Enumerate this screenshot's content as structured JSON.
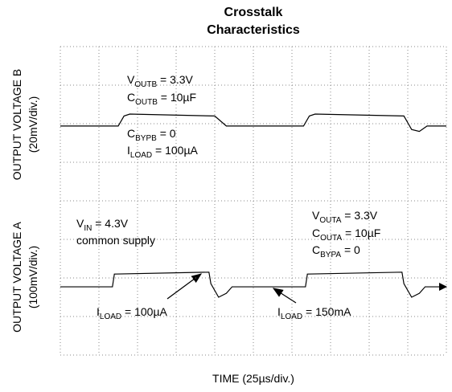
{
  "chart_data": {
    "type": "line",
    "title_lines": [
      "Crosstalk",
      "Characteristics"
    ],
    "y_label_top": [
      "OUTPUT VOLTAGE B",
      "(20mV/div.)"
    ],
    "y_label_bottom": [
      "OUTPUT VOLTAGE A",
      "(100mV/div.)"
    ],
    "x_label": "TIME (25µs/div.)",
    "xlim": [
      0,
      10
    ],
    "ylim": [
      0,
      8
    ],
    "xticks": [
      0,
      1,
      2,
      3,
      4,
      5,
      6,
      7,
      8,
      9,
      10
    ],
    "yticks": [
      0,
      1,
      2,
      3,
      4,
      5,
      6,
      7,
      8
    ],
    "grid": true,
    "series": [
      {
        "name": "OUTPUT VOLTAGE B",
        "color": "#000000",
        "x": [
          0,
          1.5,
          1.65,
          1.8,
          4.0,
          4.3,
          6.3,
          6.45,
          6.6,
          8.9,
          9.1,
          9.3,
          9.5,
          10
        ],
        "values": [
          5.94,
          5.94,
          6.2,
          6.25,
          6.2,
          5.94,
          5.94,
          6.2,
          6.25,
          6.2,
          5.85,
          5.8,
          5.94,
          5.94
        ]
      },
      {
        "name": "OUTPUT VOLTAGE A",
        "color": "#000000",
        "x": [
          0,
          1.35,
          1.4,
          3.85,
          3.9,
          4.1,
          4.3,
          4.45,
          6.35,
          6.4,
          8.85,
          8.9,
          9.1,
          9.3,
          9.45,
          10
        ],
        "values": [
          1.77,
          1.77,
          2.1,
          2.15,
          1.85,
          1.5,
          1.6,
          1.77,
          1.77,
          2.1,
          2.15,
          1.85,
          1.5,
          1.6,
          1.77,
          1.77
        ]
      }
    ],
    "annotations": [
      {
        "main": "V",
        "sub": "OUTB",
        "rest": " = 3.3V"
      },
      {
        "main": "C",
        "sub": "OUTB",
        "rest": " = 10µF"
      },
      {
        "main": "C",
        "sub": "BYPB",
        "rest": " = 0"
      },
      {
        "main": "I",
        "sub": "LOAD",
        "rest": " = 100µA"
      },
      {
        "main": "V",
        "sub": "IN",
        "rest": " = 4.3V"
      },
      {
        "main": "common supply"
      },
      {
        "main": "V",
        "sub": "OUTA",
        "rest": " = 3.3V"
      },
      {
        "main": "C",
        "sub": "OUTA",
        "rest": " = 10µF"
      },
      {
        "main": "C",
        "sub": "BYPA",
        "rest": " = 0"
      },
      {
        "main": "I",
        "sub": "LOAD",
        "rest": " = 100µA"
      },
      {
        "main": "I",
        "sub": "LOAD",
        "rest": " = 150mA"
      }
    ]
  }
}
